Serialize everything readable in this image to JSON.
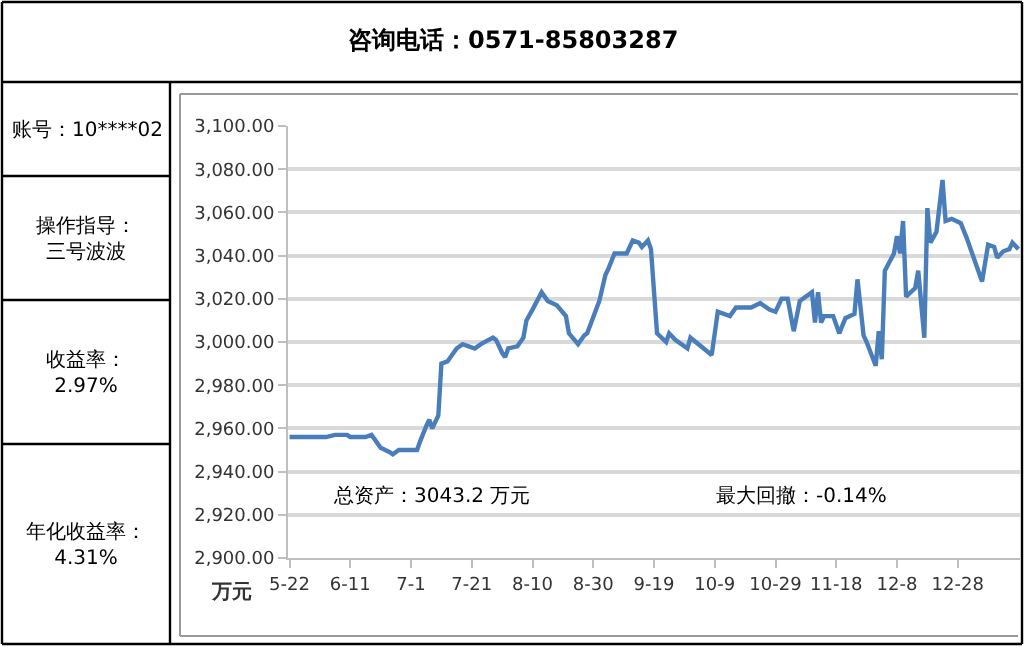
{
  "chart_data": {
    "type": "line",
    "title": "咨询电话：0571-85803287",
    "ylabel": "万元",
    "annotations": [
      "账号：10****02",
      "操作指导：三号波波",
      "收益率：2.97%",
      "年化收益率：4.31%",
      "总资产：3043.2 万元",
      "最大回撤：-0.14%"
    ],
    "categories": [
      "5-22",
      null,
      null,
      null,
      null,
      null,
      null,
      null,
      null,
      null,
      null,
      null,
      null,
      null,
      null,
      null,
      null,
      null,
      null,
      null,
      "6-11",
      null,
      null,
      null,
      null,
      null,
      null,
      null,
      null,
      null,
      null,
      null,
      null,
      null,
      null,
      null,
      null,
      null,
      null,
      null,
      "7-1",
      null,
      null,
      null,
      null,
      null,
      null,
      null,
      null,
      null,
      null,
      null,
      null,
      null,
      null,
      null,
      null,
      null,
      null,
      null,
      "7-21",
      null,
      null,
      null,
      null,
      null,
      null,
      null,
      null,
      null,
      null,
      null,
      null,
      null,
      null,
      null,
      null,
      null,
      null,
      null,
      "8-10",
      null,
      null,
      null,
      null,
      null,
      null,
      null,
      null,
      null,
      null,
      null,
      null,
      null,
      null,
      null,
      null,
      null,
      null,
      null,
      "8-30",
      null,
      null,
      null,
      null,
      null,
      null,
      null,
      null,
      null,
      null,
      null,
      null,
      null,
      null,
      null,
      null,
      null,
      null,
      null,
      "9-19",
      null,
      null,
      null,
      null,
      null,
      null,
      null,
      null,
      null,
      null,
      null,
      null,
      null,
      null,
      null,
      null,
      null,
      null,
      null,
      "10-9",
      null,
      null,
      null,
      null,
      null,
      null,
      null,
      null,
      null,
      null,
      null,
      null,
      null,
      null,
      null,
      null,
      null,
      null,
      null,
      "10-29",
      null,
      null,
      null,
      null,
      null,
      null,
      null,
      null,
      null,
      null,
      null,
      null,
      null,
      null,
      null,
      null,
      null,
      null,
      null,
      "11-18",
      null,
      null,
      null,
      null,
      null,
      null,
      null,
      null,
      null,
      null,
      null,
      null,
      null,
      null,
      null,
      null,
      null,
      null,
      null,
      "12-8",
      null,
      null,
      null,
      null,
      null,
      null,
      null,
      null,
      null,
      null,
      null,
      null,
      null,
      null,
      null,
      null,
      null,
      null,
      null,
      "12-28",
      null,
      null,
      null,
      null,
      null,
      null,
      null,
      null,
      null,
      null,
      null,
      null,
      null,
      null,
      null,
      null,
      null,
      null,
      null,
      null
    ],
    "series": [
      {
        "color": "#4a7ebb",
        "values": [
          2956,
          null,
          null,
          null,
          null,
          null,
          null,
          null,
          null,
          null,
          null,
          null,
          2956,
          null,
          null,
          2957,
          null,
          null,
          null,
          2957,
          2956,
          null,
          null,
          null,
          null,
          2956,
          null,
          2957,
          null,
          null,
          2951,
          null,
          null,
          2949,
          2948,
          null,
          2950,
          null,
          null,
          null,
          null,
          null,
          2950,
          2954,
          null,
          2961,
          2964,
          2960,
          null,
          2966,
          2990,
          null,
          2991,
          null,
          null,
          2997,
          null,
          2999,
          null,
          null,
          null,
          2997,
          null,
          2999,
          null,
          null,
          null,
          3002,
          3001,
          null,
          2995,
          2993,
          2997,
          null,
          null,
          2998,
          null,
          3002,
          3010,
          null,
          3015,
          null,
          null,
          3023,
          null,
          3019,
          null,
          null,
          3017,
          null,
          null,
          3012,
          3004,
          null,
          null,
          2999,
          null,
          3003,
          3004,
          null,
          null,
          null,
          3019,
          null,
          3031,
          3034,
          null,
          3041,
          null,
          null,
          null,
          3041,
          null,
          3047,
          null,
          3046,
          3044,
          null,
          3047,
          3043,
          null,
          3004,
          null,
          null,
          3000,
          3004,
          null,
          3001,
          null,
          null,
          null,
          2997,
          3002,
          null,
          null,
          null,
          null,
          null,
          null,
          2994,
          null,
          3014,
          null,
          null,
          null,
          3012,
          null,
          3016,
          null,
          null,
          null,
          null,
          3016,
          null,
          null,
          3018,
          null,
          null,
          3015,
          null,
          3014,
          null,
          3020,
          null,
          3020,
          null,
          3005,
          null,
          3019,
          null,
          3021,
          null,
          3023,
          3009,
          3023,
          3009,
          3012,
          null,
          null,
          3012,
          null,
          3004,
          null,
          3011,
          null,
          null,
          3013,
          3029,
          null,
          3003,
          3000,
          null,
          null,
          2989,
          3005,
          2992,
          3033,
          null,
          null,
          3041,
          3049,
          3041,
          3056,
          3021,
          null,
          null,
          3025,
          3033,
          null,
          3002,
          3062,
          3046,
          null,
          3051,
          null,
          3075,
          3056,
          null,
          3057,
          null,
          null,
          3055,
          null,
          3048,
          null,
          null,
          null,
          null,
          3028,
          null,
          3045,
          null,
          3044,
          3039,
          null,
          3042,
          null,
          3043,
          3046,
          null,
          3043
        ]
      }
    ],
    "ylim": [
      2900,
      3100
    ],
    "yticks": [
      {
        "value": 2900,
        "label": "2,900.00"
      },
      {
        "value": 2920,
        "label": "2,920.00"
      },
      {
        "value": 2940,
        "label": "2,940.00"
      },
      {
        "value": 2960,
        "label": "2,960.00"
      },
      {
        "value": 2980,
        "label": "2,980.00"
      },
      {
        "value": 3000,
        "label": "3,000.00"
      },
      {
        "value": 3020,
        "label": "3,020.00"
      },
      {
        "value": 3040,
        "label": "3,040.00"
      },
      {
        "value": 3060,
        "label": "3,060.00"
      },
      {
        "value": 3080,
        "label": "3,080.00"
      },
      {
        "value": 3100,
        "label": "3,100.00"
      }
    ],
    "grid": "y",
    "marker": "none",
    "line_style": "solid"
  }
}
